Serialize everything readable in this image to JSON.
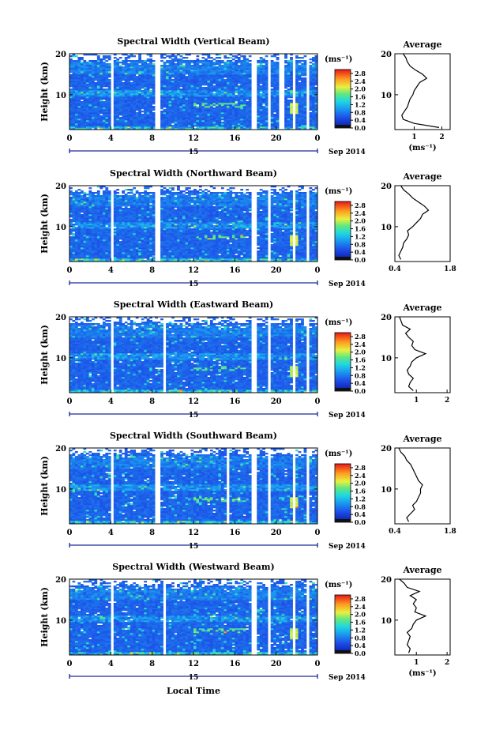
{
  "figure": {
    "x_axis_label": "Local Time",
    "colorbar_unit": "(ms⁻¹)",
    "date_label": "Sep 2014",
    "day_marker": "15",
    "height_label": "Height (km)",
    "avg_title": "Average",
    "avg_unit": "(ms⁻¹)"
  },
  "chart_data": [
    {
      "type": "heatmap",
      "title": "Spectral Width (Vertical Beam)",
      "ylabel": "Height (km)",
      "xlabel": "Local Time",
      "x_ticks": [
        "0",
        "4",
        "8",
        "12",
        "16",
        "20",
        "0"
      ],
      "y_ticks": [
        "20",
        "10"
      ],
      "xlim": [
        0,
        24
      ],
      "ylim": [
        1.5,
        20
      ],
      "colorbar": {
        "ticks": [
          "2.8",
          "2.4",
          "2.0",
          "1.6",
          "1.2",
          "0.8",
          "0.4",
          "0.0"
        ],
        "range": [
          0,
          3.0
        ]
      },
      "gaps_hours": [
        [
          4.1,
          4.3
        ],
        [
          4.7,
          4.9
        ],
        [
          8.3,
          8.7
        ],
        [
          17.6,
          18.0
        ],
        [
          19.2,
          19.5
        ],
        [
          20.4,
          20.7
        ],
        [
          21.6,
          21.9
        ],
        [
          23.0,
          23.2
        ]
      ],
      "average": {
        "xlabel": "(ms⁻¹)",
        "x_ticks": [
          "1",
          "2"
        ],
        "xlim": [
          0.3,
          2.3
        ],
        "height_km": [
          2,
          3,
          4,
          5,
          6,
          7,
          8,
          9,
          10,
          11,
          12,
          13,
          14,
          15,
          16,
          17,
          18,
          19,
          20
        ],
        "values": [
          1.9,
          1.0,
          0.6,
          0.55,
          0.65,
          0.75,
          0.8,
          0.85,
          0.95,
          1.0,
          1.1,
          1.2,
          1.45,
          1.3,
          1.05,
          0.85,
          0.75,
          0.7,
          0.6
        ]
      }
    },
    {
      "type": "heatmap",
      "title": "Spectral Width (Northward Beam)",
      "ylabel": "Height (km)",
      "xlabel": "Local Time",
      "x_ticks": [
        "0",
        "4",
        "8",
        "12",
        "16",
        "20",
        "0"
      ],
      "y_ticks": [
        "20",
        "10"
      ],
      "xlim": [
        0,
        24
      ],
      "ylim": [
        1.5,
        20
      ],
      "colorbar": {
        "ticks": [
          "2.8",
          "2.4",
          "2.0",
          "1.6",
          "1.2",
          "0.8",
          "0.4",
          "0.0"
        ],
        "range": [
          0,
          3.0
        ]
      },
      "gaps_hours": [
        [
          4.1,
          4.3
        ],
        [
          5.5,
          5.7
        ],
        [
          8.3,
          8.7
        ],
        [
          17.6,
          18.0
        ],
        [
          19.2,
          19.5
        ],
        [
          21.6,
          21.9
        ],
        [
          23.0,
          23.2
        ]
      ],
      "average": {
        "xlabel": "",
        "x_ticks": [
          "0.4",
          "1.8"
        ],
        "xlim": [
          0.4,
          1.8
        ],
        "height_km": [
          2,
          3,
          4,
          5,
          6,
          7,
          8,
          9,
          10,
          11,
          12,
          13,
          14,
          15,
          16,
          17,
          18,
          19,
          20
        ],
        "values": [
          0.55,
          0.5,
          0.55,
          0.6,
          0.62,
          0.7,
          0.75,
          0.72,
          0.85,
          0.95,
          1.05,
          1.1,
          1.25,
          1.15,
          1.0,
          0.85,
          0.75,
          0.62,
          0.55
        ]
      }
    },
    {
      "type": "heatmap",
      "title": "Spectral Width (Eastward Beam)",
      "ylabel": "Height (km)",
      "xlabel": "Local Time",
      "x_ticks": [
        "0",
        "4",
        "8",
        "12",
        "16",
        "20",
        "0"
      ],
      "y_ticks": [
        "20",
        "10"
      ],
      "xlim": [
        0,
        24
      ],
      "ylim": [
        1.5,
        20
      ],
      "colorbar": {
        "ticks": [
          "2.8",
          "2.4",
          "2.0",
          "1.6",
          "1.2",
          "0.8",
          "0.4",
          "0.0"
        ],
        "range": [
          0,
          3.0
        ]
      },
      "gaps_hours": [
        [
          4.1,
          4.3
        ],
        [
          4.7,
          4.9
        ],
        [
          9.0,
          9.4
        ],
        [
          17.6,
          18.0
        ],
        [
          19.2,
          19.5
        ],
        [
          21.6,
          21.9
        ],
        [
          23.0,
          23.2
        ]
      ],
      "average": {
        "xlabel": "",
        "x_ticks": [
          "1",
          "2"
        ],
        "xlim": [
          0.3,
          2.1
        ],
        "height_km": [
          2,
          3,
          4,
          5,
          6,
          7,
          8,
          9,
          10,
          11,
          12,
          13,
          14,
          15,
          16,
          17,
          18,
          19,
          20
        ],
        "values": [
          0.9,
          0.75,
          0.8,
          0.9,
          0.75,
          0.7,
          0.8,
          0.85,
          1.0,
          1.3,
          0.95,
          0.85,
          0.9,
          0.75,
          0.65,
          0.8,
          0.55,
          0.5,
          0.45
        ]
      }
    },
    {
      "type": "heatmap",
      "title": "Spectral Width (Southward Beam)",
      "ylabel": "Height (km)",
      "xlabel": "Local Time",
      "x_ticks": [
        "0",
        "4",
        "8",
        "12",
        "16",
        "20",
        "0"
      ],
      "y_ticks": [
        "20",
        "10"
      ],
      "xlim": [
        0,
        24
      ],
      "ylim": [
        1.5,
        20
      ],
      "colorbar": {
        "ticks": [
          "2.8",
          "2.4",
          "2.0",
          "1.6",
          "1.2",
          "0.8",
          "0.4",
          "0.0"
        ],
        "range": [
          0,
          3.0
        ]
      },
      "gaps_hours": [
        [
          4.1,
          4.3
        ],
        [
          5.5,
          5.7
        ],
        [
          8.3,
          8.7
        ],
        [
          15.3,
          15.5
        ],
        [
          17.6,
          18.0
        ],
        [
          19.2,
          19.5
        ],
        [
          21.6,
          21.9
        ],
        [
          23.0,
          23.2
        ]
      ],
      "average": {
        "xlabel": "",
        "x_ticks": [
          "0.4",
          "1.8"
        ],
        "xlim": [
          0.4,
          1.8
        ],
        "height_km": [
          2,
          3,
          4,
          5,
          6,
          7,
          8,
          9,
          10,
          11,
          12,
          13,
          14,
          15,
          16,
          17,
          18,
          19,
          20
        ],
        "values": [
          0.75,
          0.7,
          0.8,
          0.9,
          0.85,
          0.95,
          1.0,
          1.05,
          1.05,
          1.1,
          1.0,
          0.95,
          0.9,
          0.85,
          0.8,
          0.7,
          0.65,
          0.55,
          0.5
        ]
      }
    },
    {
      "type": "heatmap",
      "title": "Spectral Width (Westward Beam)",
      "ylabel": "Height (km)",
      "xlabel": "Local Time",
      "x_ticks": [
        "0",
        "4",
        "8",
        "12",
        "16",
        "20",
        "0"
      ],
      "y_ticks": [
        "20",
        "10"
      ],
      "xlim": [
        0,
        24
      ],
      "ylim": [
        1.5,
        20
      ],
      "colorbar": {
        "ticks": [
          "2.8",
          "2.4",
          "2.0",
          "1.6",
          "1.2",
          "0.8",
          "0.4",
          "0.0"
        ],
        "range": [
          0,
          3.0
        ]
      },
      "gaps_hours": [
        [
          4.1,
          4.3
        ],
        [
          5.5,
          5.7
        ],
        [
          9.0,
          9.4
        ],
        [
          17.6,
          18.0
        ],
        [
          19.2,
          19.5
        ],
        [
          21.6,
          21.9
        ],
        [
          23.0,
          23.2
        ]
      ],
      "average": {
        "xlabel": "(ms⁻¹)",
        "x_ticks": [
          "1",
          "2"
        ],
        "xlim": [
          0.3,
          2.1
        ],
        "height_km": [
          2,
          3,
          4,
          5,
          6,
          7,
          8,
          9,
          10,
          11,
          12,
          13,
          14,
          15,
          16,
          17,
          18,
          19,
          20
        ],
        "values": [
          0.75,
          0.8,
          0.7,
          0.75,
          0.8,
          0.7,
          0.85,
          0.9,
          1.0,
          1.3,
          0.95,
          1.0,
          0.9,
          1.0,
          0.8,
          1.1,
          0.7,
          0.6,
          0.45
        ]
      }
    }
  ]
}
